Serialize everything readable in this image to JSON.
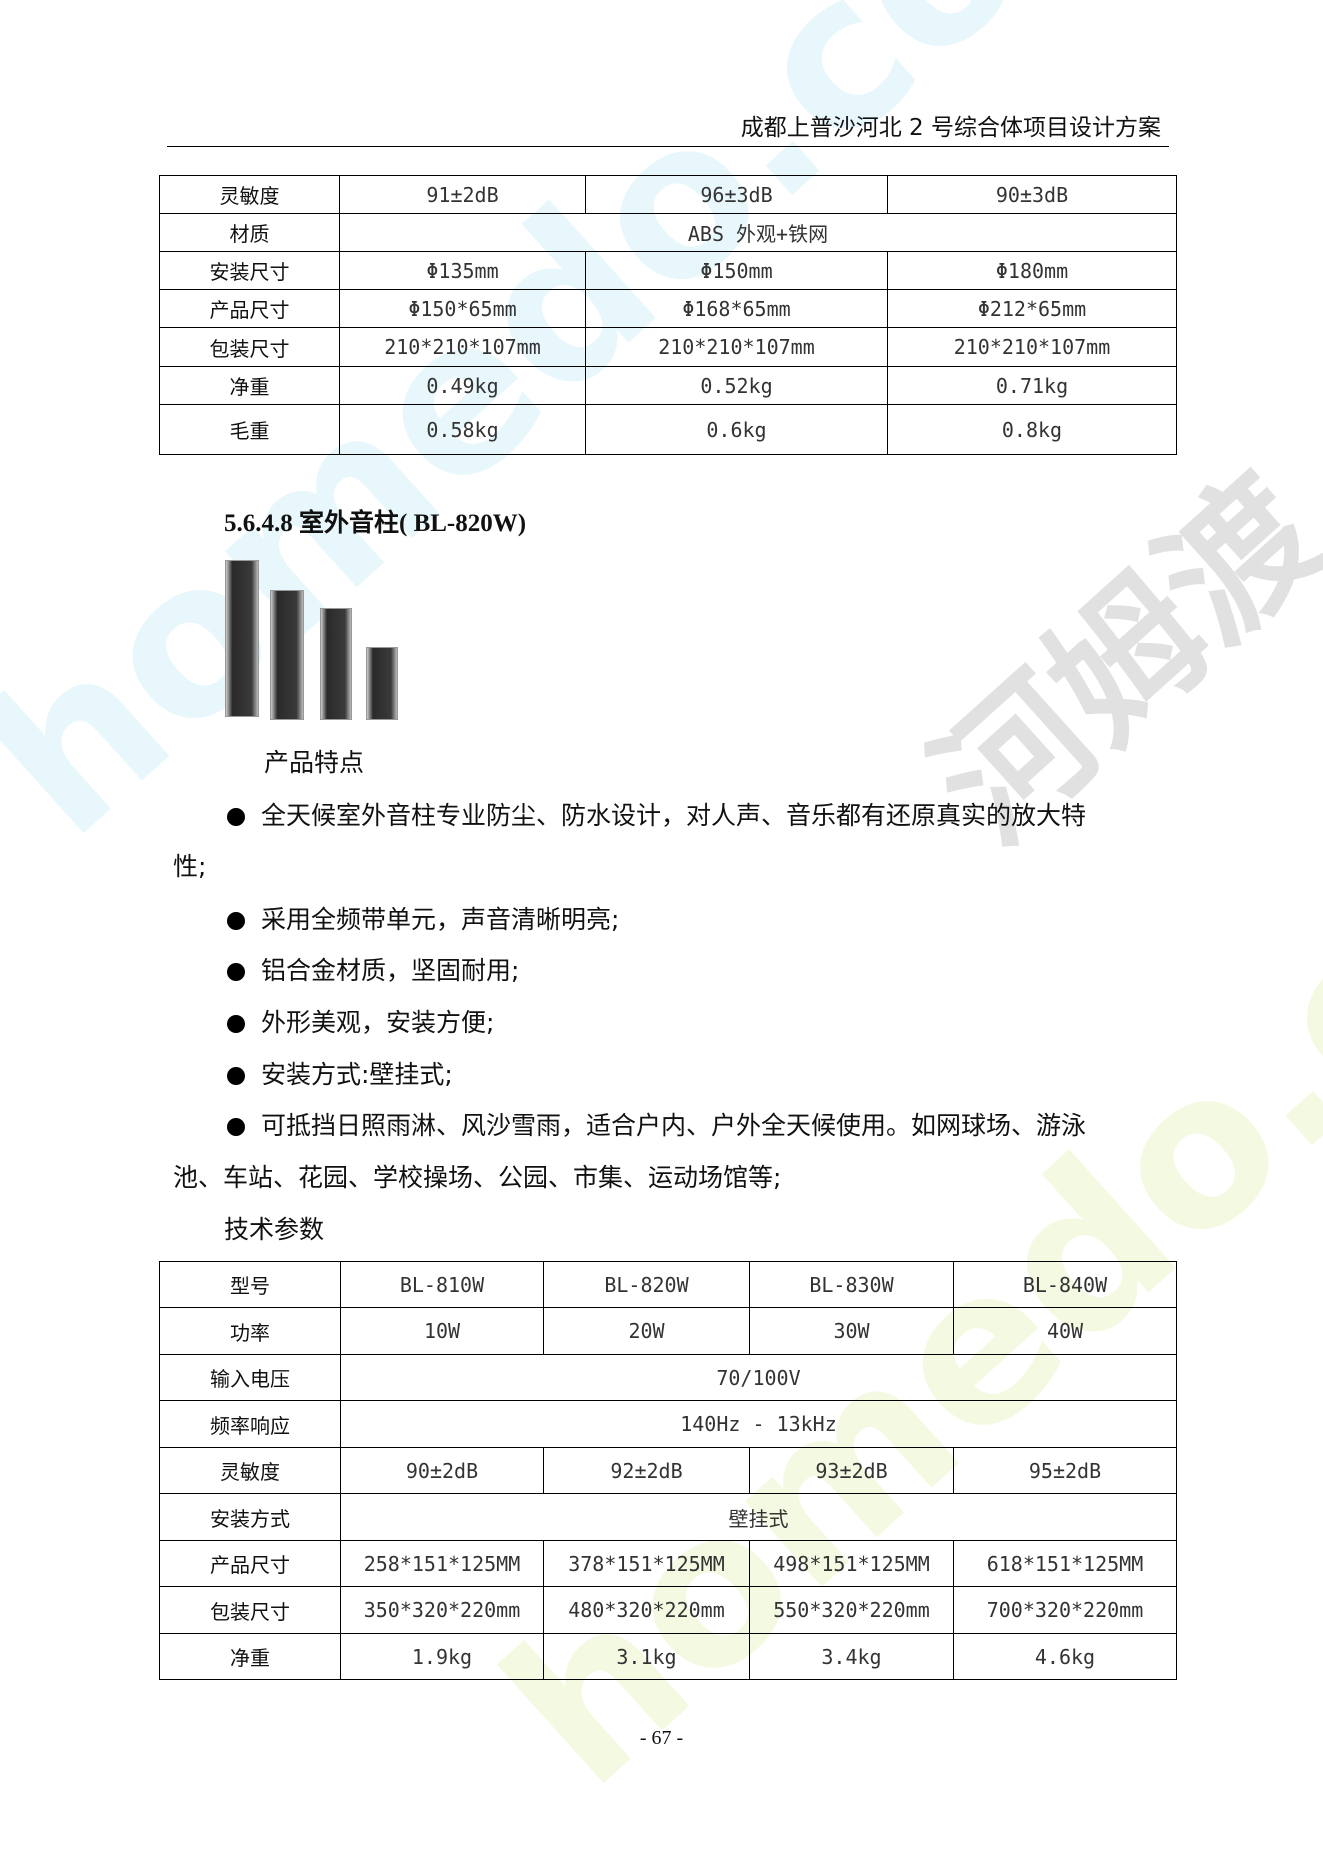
{
  "header": {
    "title": "成都上普沙河北 2 号综合体项目设计方案"
  },
  "watermark": {
    "site": "homedo.com",
    "brand": "河姆渡"
  },
  "table1": {
    "rows": [
      {
        "label": "灵敏度",
        "cells": [
          "91±2dB",
          "96±3dB",
          "90±3dB"
        ]
      },
      {
        "label": "材质",
        "span": "ABS 外观+铁网"
      },
      {
        "label": "安装尺寸",
        "cells": [
          "Φ135mm",
          "Φ150mm",
          "Φ180mm"
        ]
      },
      {
        "label": "产品尺寸",
        "cells": [
          "Φ150*65mm",
          "Φ168*65mm",
          "Φ212*65mm"
        ]
      },
      {
        "label": "包装尺寸",
        "cells": [
          "210*210*107mm",
          "210*210*107mm",
          "210*210*107mm"
        ]
      },
      {
        "label": "净重",
        "cells": [
          "0.49kg",
          "0.52kg",
          "0.71kg"
        ]
      },
      {
        "label": "毛重",
        "cells": [
          "0.58kg",
          "0.6kg",
          "0.8kg"
        ]
      }
    ]
  },
  "section": {
    "heading": "5.6.4.8 室外音柱( BL-820W)",
    "features_title": "产品特点",
    "bullets": [
      "全天候室外音柱专业防尘、防水设计，对人声、音乐都有还原真实的放大特",
      "性;",
      "采用全频带单元，声音清晰明亮;",
      "铝合金材质，坚固耐用;",
      "外形美观，安装方便;",
      "安装方式:壁挂式;",
      "可抵挡日照雨淋、风沙雪雨，适合户内、户外全天候使用。如网球场、游泳",
      "池、车站、花园、学校操场、公园、市集、运动场馆等;"
    ],
    "params_title": "技术参数"
  },
  "table2": {
    "rows": [
      {
        "label": "型号",
        "cells": [
          "BL-810W",
          "BL-820W",
          "BL-830W",
          "BL-840W"
        ]
      },
      {
        "label": "功率",
        "cells": [
          "10W",
          "20W",
          "30W",
          "40W"
        ]
      },
      {
        "label": "输入电压",
        "span": "70/100V"
      },
      {
        "label": "频率响应",
        "span": "140Hz - 13kHz"
      },
      {
        "label": "灵敏度",
        "cells": [
          "90±2dB",
          "92±2dB",
          "93±2dB",
          "95±2dB"
        ]
      },
      {
        "label": "安装方式",
        "span": "壁挂式"
      },
      {
        "label": "产品尺寸",
        "cells": [
          "258*151*125MM",
          "378*151*125MM",
          "498*151*125MM",
          "618*151*125MM"
        ]
      },
      {
        "label": "包装尺寸",
        "cells": [
          "350*320*220mm",
          "480*320*220mm",
          "550*320*220mm",
          "700*320*220mm"
        ]
      },
      {
        "label": "净重",
        "cells": [
          "1.9kg",
          "3.1kg",
          "3.4kg",
          "4.6kg"
        ]
      }
    ]
  },
  "footer": {
    "page": "- 67 -"
  }
}
